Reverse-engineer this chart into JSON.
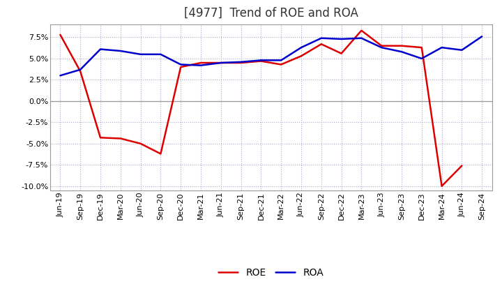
{
  "title": "[4977]  Trend of ROE and ROA",
  "x_labels": [
    "Jun-19",
    "Sep-19",
    "Dec-19",
    "Mar-20",
    "Jun-20",
    "Sep-20",
    "Dec-20",
    "Mar-21",
    "Jun-21",
    "Sep-21",
    "Dec-21",
    "Mar-22",
    "Jun-22",
    "Sep-22",
    "Dec-22",
    "Mar-23",
    "Jun-23",
    "Sep-23",
    "Dec-23",
    "Mar-24",
    "Jun-24",
    "Sep-24"
  ],
  "ROE": [
    7.8,
    3.5,
    -4.3,
    -4.4,
    -5.0,
    -6.2,
    4.0,
    4.5,
    4.5,
    4.5,
    4.7,
    4.3,
    5.3,
    6.7,
    5.6,
    8.3,
    6.5,
    6.5,
    6.3,
    -10.0,
    -7.6,
    null
  ],
  "ROA": [
    3.0,
    3.7,
    6.1,
    5.9,
    5.5,
    5.5,
    4.3,
    4.2,
    4.5,
    4.6,
    4.8,
    4.8,
    6.3,
    7.4,
    7.3,
    7.4,
    6.3,
    5.8,
    5.0,
    6.3,
    6.0,
    7.6
  ],
  "roe_color": "#dd0000",
  "roa_color": "#0000cc",
  "background_color": "#ffffff",
  "grid_color": "#aaaacc",
  "zero_line_color": "#999999",
  "title_color": "#333333",
  "ylim": [
    -10.5,
    9.0
  ],
  "yticks": [
    -10.0,
    -7.5,
    -5.0,
    -2.5,
    0.0,
    2.5,
    5.0,
    7.5
  ],
  "line_width": 1.8,
  "title_fontsize": 12,
  "tick_fontsize": 8,
  "legend_fontsize": 10
}
